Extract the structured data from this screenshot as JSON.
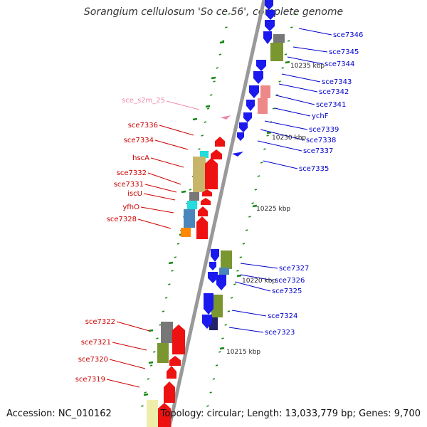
{
  "title": "Sorangium cellulosum 'So ce 56', complete genome",
  "footer": {
    "accession": "Accession: NC_010162",
    "summary": "Topology: circular; Length: 13,033,779 bp; Genes: 9,700"
  },
  "colors": {
    "forward_label": "#0000cc",
    "reverse_label": "#cc0000",
    "rna_label": "#ee88aa",
    "backbone": "#999999",
    "forward_gene": "#1a1aee",
    "reverse_gene": "#ee1111",
    "domain_olive": "#7a9630",
    "domain_khaki": "#c9b56a",
    "domain_gray": "#777777",
    "domain_cyan": "#22dddd",
    "domain_steel": "#4a86bb",
    "domain_orange": "#ff8800",
    "tick_green": "#118811"
  },
  "kbp_labels": [
    "10235 kbp",
    "10230 kbp",
    "10225 kbp",
    "10220 kbp",
    "10215 kbp"
  ],
  "forward_genes": [
    "sce7346",
    "sce7345",
    "sce7344",
    "sce7343",
    "sce7342",
    "sce7341",
    "ychF",
    "sce7339",
    "sce7338",
    "sce7337",
    "sce7335",
    "sce7327",
    "sce7326",
    "sce7325",
    "sce7324",
    "sce7323"
  ],
  "reverse_genes": [
    "sce7336",
    "sce7334",
    "hscA",
    "sce7332",
    "sce7331",
    "iscU",
    "yfhO",
    "sce7328",
    "sce7322",
    "sce7321",
    "sce7320",
    "sce7319"
  ],
  "rna_genes": [
    "sce_s2m_25"
  ]
}
